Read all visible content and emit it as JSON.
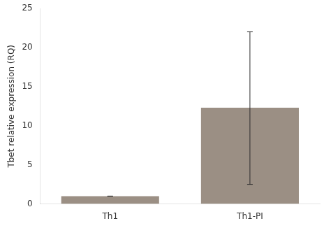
{
  "chart_data": {
    "type": "bar",
    "ylabel": "Tbet relative expression (RQ)",
    "categories": [
      "Th1",
      "Th1-PI"
    ],
    "values": [
      1.0,
      12.3
    ],
    "error_lower": [
      0.0,
      9.8
    ],
    "error_upper": [
      0.0,
      9.7
    ],
    "color": "#9b8f84",
    "ylim": [
      0,
      25
    ],
    "yticks": [
      0,
      5,
      10,
      15,
      20,
      25
    ],
    "grid": false
  }
}
